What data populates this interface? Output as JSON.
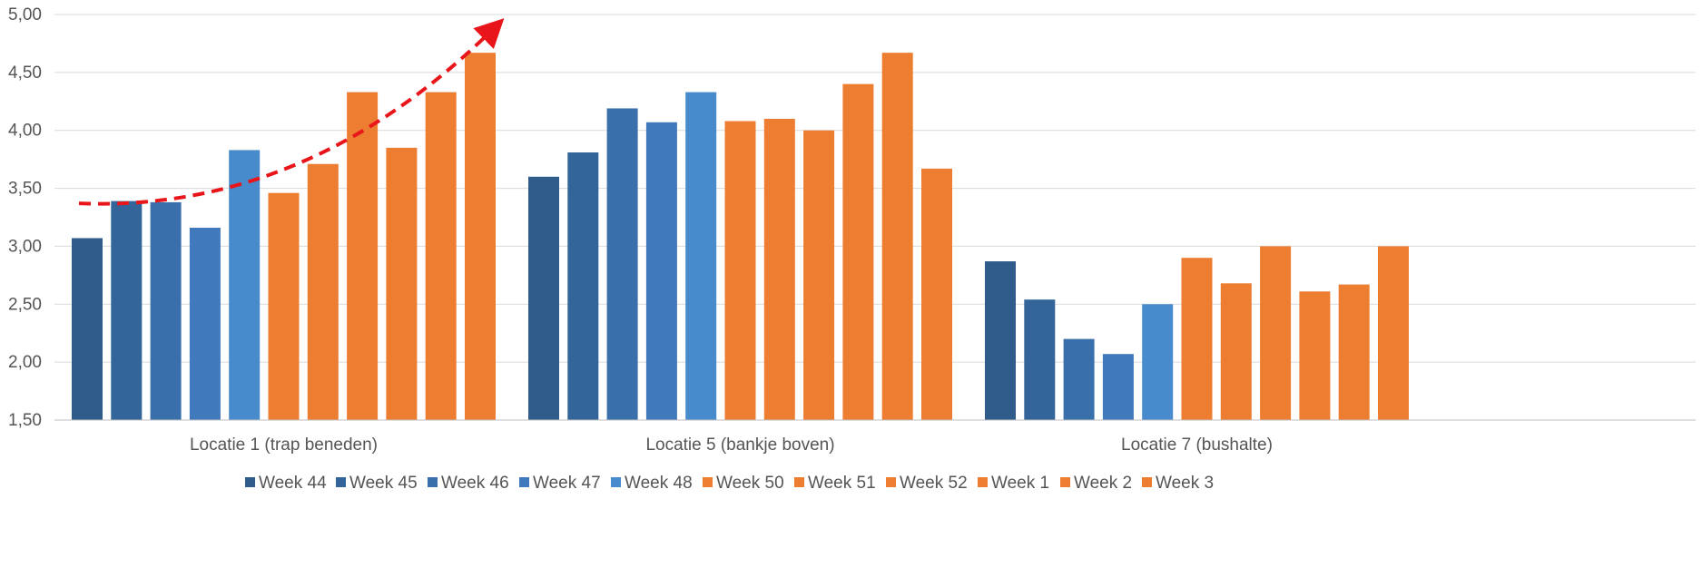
{
  "chart_data": {
    "type": "bar",
    "title": "",
    "xlabel": "",
    "ylabel": "",
    "categories": [
      "Locatie 1 (trap beneden)",
      "Locatie 5 (bankje boven)",
      "Locatie 7 (bushalte)"
    ],
    "ylim": [
      1.5,
      5.0
    ],
    "yticks": [
      1.5,
      2.0,
      2.5,
      3.0,
      3.5,
      4.0,
      4.5,
      5.0
    ],
    "ytick_labels": [
      "1,50",
      "2,00",
      "2,50",
      "3,00",
      "3,50",
      "4,00",
      "4,50",
      "5,00"
    ],
    "grid": true,
    "legend_position": "bottom",
    "series": [
      {
        "name": "Week 44",
        "color": "#2F5C8A",
        "values": [
          3.07,
          3.6,
          2.87
        ]
      },
      {
        "name": "Week 45",
        "color": "#33659A",
        "values": [
          3.39,
          3.81,
          2.54
        ]
      },
      {
        "name": "Week 46",
        "color": "#3970AB",
        "values": [
          3.38,
          4.19,
          2.2
        ]
      },
      {
        "name": "Week 47",
        "color": "#4079BC",
        "values": [
          3.16,
          4.07,
          2.07
        ]
      },
      {
        "name": "Week 48",
        "color": "#478BCC",
        "values": [
          3.83,
          4.33,
          2.5
        ]
      },
      {
        "name": "Week 50",
        "color": "#ED7D31",
        "values": [
          3.46,
          4.08,
          2.9
        ]
      },
      {
        "name": "Week 51",
        "color": "#ED7D31",
        "values": [
          3.71,
          4.1,
          2.68
        ]
      },
      {
        "name": "Week 52",
        "color": "#ED7D31",
        "values": [
          4.33,
          4.0,
          3.0
        ]
      },
      {
        "name": "Week 1",
        "color": "#ED7D31",
        "values": [
          3.85,
          4.4,
          2.61
        ]
      },
      {
        "name": "Week 2",
        "color": "#ED7D31",
        "values": [
          4.33,
          4.67,
          2.67
        ]
      },
      {
        "name": "Week 3",
        "color": "#ED7D31",
        "values": [
          4.67,
          3.67,
          3.0
        ]
      }
    ],
    "annotations": [
      {
        "type": "trend-arrow",
        "style": "dashed",
        "color": "#E8161A",
        "category": "Locatie 1 (trap beneden)",
        "from_value": 3.37,
        "to_value": 4.88
      }
    ]
  }
}
